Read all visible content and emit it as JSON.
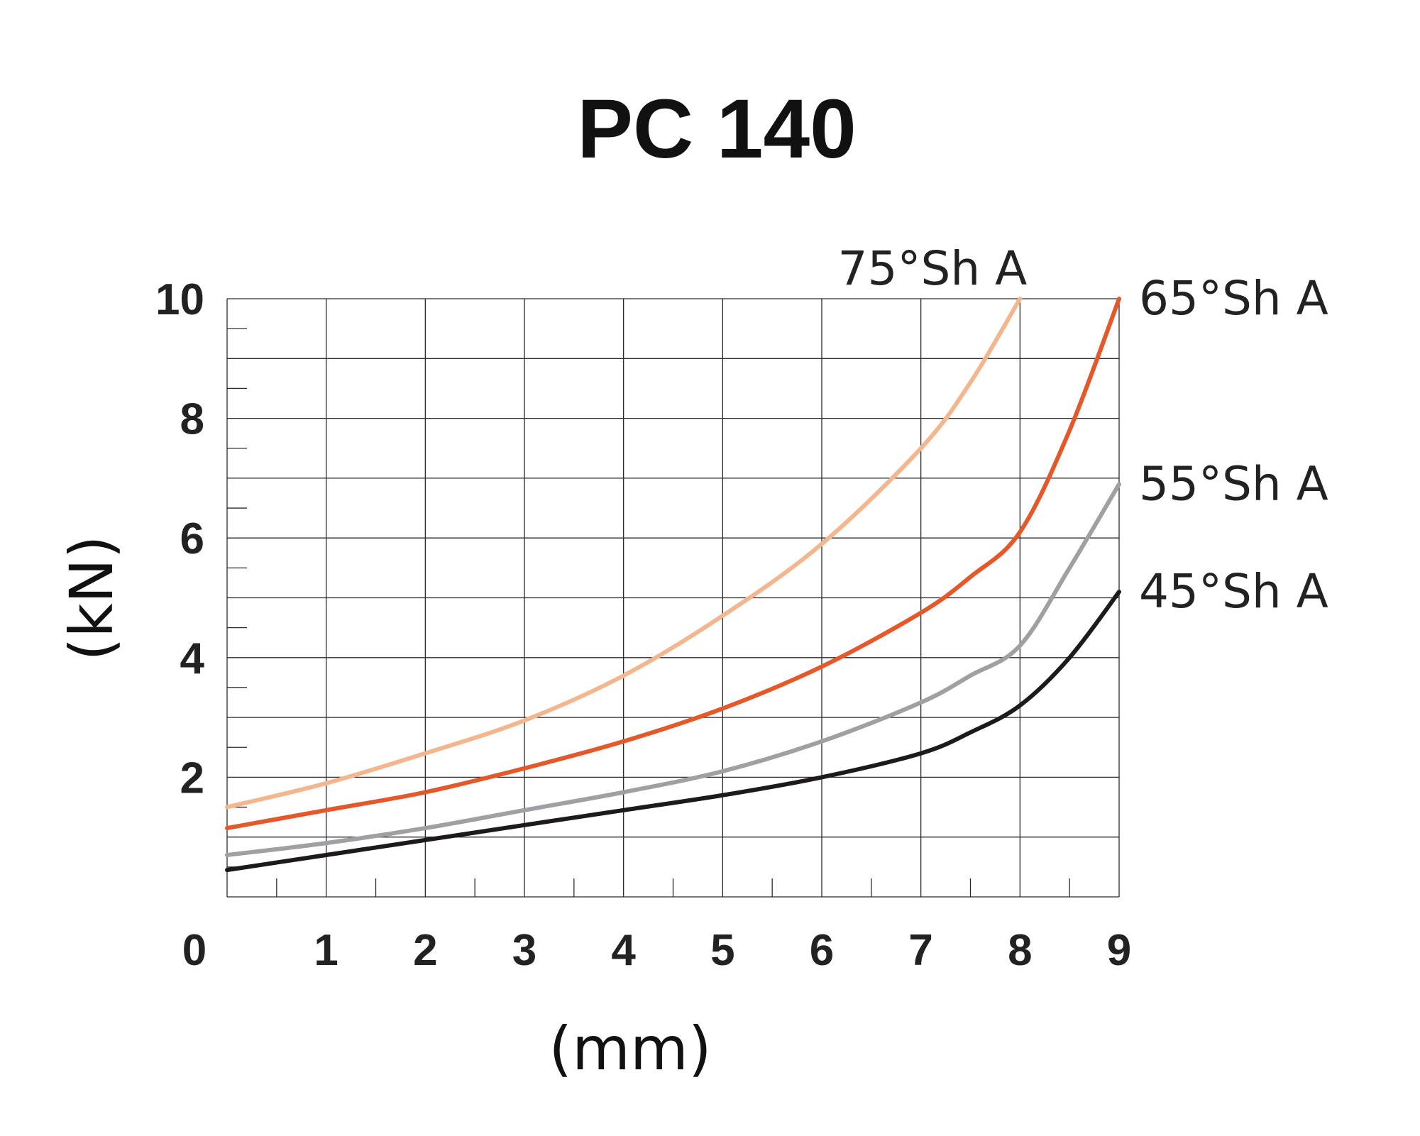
{
  "chart_data": {
    "type": "line",
    "title": "PC 140",
    "xlabel": "(mm)",
    "ylabel": "(kN)",
    "xlim": [
      0,
      9
    ],
    "ylim": [
      0,
      10
    ],
    "grid": true,
    "x_ticks": [
      "0",
      "1",
      "2",
      "3",
      "4",
      "5",
      "6",
      "7",
      "8",
      "9"
    ],
    "y_ticks": [
      "2",
      "4",
      "6",
      "8",
      "10"
    ],
    "series": [
      {
        "name": "75°Sh A",
        "color": "#f3b78f",
        "x": [
          0,
          1,
          2,
          3,
          4,
          5,
          6,
          7,
          7.5,
          8
        ],
        "y": [
          1.5,
          1.9,
          2.4,
          2.95,
          3.7,
          4.7,
          5.9,
          7.5,
          8.6,
          10
        ]
      },
      {
        "name": "65°Sh A",
        "color": "#e4582a",
        "x": [
          0,
          1,
          2,
          3,
          4,
          5,
          6,
          7,
          7.5,
          8,
          8.5,
          9
        ],
        "y": [
          1.15,
          1.45,
          1.75,
          2.15,
          2.6,
          3.15,
          3.85,
          4.75,
          5.35,
          6.1,
          7.8,
          10
        ]
      },
      {
        "name": "55°Sh A",
        "color": "#a0a0a3",
        "x": [
          0,
          1,
          2,
          3,
          4,
          5,
          6,
          7,
          7.5,
          8,
          8.5,
          9
        ],
        "y": [
          0.7,
          0.9,
          1.15,
          1.45,
          1.75,
          2.1,
          2.6,
          3.25,
          3.7,
          4.2,
          5.5,
          6.9
        ]
      },
      {
        "name": "45°Sh A",
        "color": "#1c1a1b",
        "x": [
          0,
          1,
          2,
          3,
          4,
          5,
          6,
          7,
          7.5,
          8,
          8.5,
          9
        ],
        "y": [
          0.45,
          0.7,
          0.95,
          1.2,
          1.45,
          1.7,
          2.0,
          2.4,
          2.75,
          3.2,
          4.0,
          5.1
        ]
      }
    ]
  }
}
